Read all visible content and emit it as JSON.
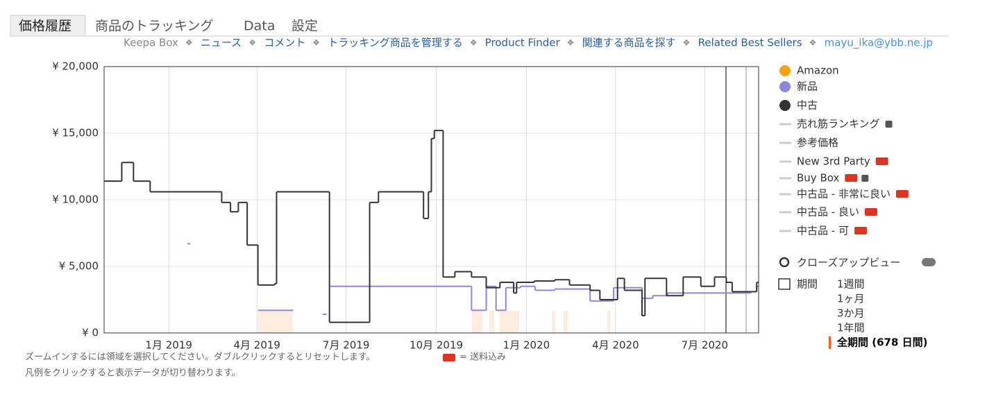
{
  "tabs": [
    "価格履歴",
    "商品のトラッキング",
    "Data",
    "設定"
  ],
  "links": [
    "Keepa Box",
    "ニュース",
    "コメント",
    "トラッキング商品を管理する",
    "Product Finder",
    "関連する商品を探す",
    "Related Best Sellers",
    "mayu_ika@ybb.ne.jp"
  ],
  "chart_data": {
    "type": "line",
    "step": true,
    "xlim": [
      0,
      668
    ],
    "xticks": [
      {
        "value": 66,
        "label": "1月 2019"
      },
      {
        "value": 156,
        "label": "4月 2019"
      },
      {
        "value": 247,
        "label": "7月 2019"
      },
      {
        "value": 339,
        "label": "10月 2019"
      },
      {
        "value": 431,
        "label": "1月 2020"
      },
      {
        "value": 522,
        "label": "4月 2020"
      },
      {
        "value": 613,
        "label": "7月 2020"
      }
    ],
    "ylim": [
      0,
      20000
    ],
    "yticks": [
      {
        "value": 0,
        "label": "¥ 0"
      },
      {
        "value": 5000,
        "label": "¥ 5,000"
      },
      {
        "value": 10000,
        "label": "¥ 10,000"
      },
      {
        "value": 15000,
        "label": "¥ 15,000"
      },
      {
        "value": 20000,
        "label": "¥ 20,000"
      }
    ],
    "grid": true,
    "series": [
      {
        "name": "新品",
        "color": "#8888dd",
        "x": [
          85,
          88,
          157,
          193,
          223,
          227,
          231,
          375,
          390,
          400,
          410,
          425,
          440,
          460,
          496,
          520,
          549,
          560,
          575,
          641,
          660,
          666
        ],
        "values": [
          6700,
          null,
          1700,
          null,
          1400,
          null,
          3500,
          1700,
          3500,
          1700,
          3400,
          3500,
          3200,
          3300,
          2400,
          3400,
          2600,
          2800,
          3000,
          3000,
          3100,
          3500
        ]
      },
      {
        "name": "中古",
        "color": "#333333",
        "x": [
          0,
          18,
          30,
          47,
          120,
          129,
          137,
          146,
          157,
          174,
          176,
          230,
          271,
          280,
          326,
          331,
          334,
          337,
          346,
          358,
          375,
          390,
          404,
          418,
          421,
          439,
          460,
          475,
          496,
          506,
          524,
          531,
          549,
          552,
          574,
          591,
          609,
          623,
          635,
          641,
          666
        ],
        "values": [
          11400,
          12800,
          11400,
          10600,
          9800,
          9100,
          9800,
          6600,
          3600,
          3700,
          10600,
          800,
          9800,
          10600,
          8600,
          10600,
          14600,
          15200,
          4200,
          4600,
          4200,
          3400,
          3800,
          3000,
          3800,
          3900,
          4000,
          3600,
          3200,
          2500,
          4100,
          3200,
          1300,
          4100,
          2800,
          4200,
          3500,
          4200,
          3800,
          3100,
          3800
        ]
      }
    ]
  },
  "legend_extra": [
    {
      "name": "Amazon",
      "color": "#f5a30a"
    },
    {
      "name": "売れ筋ランキング"
    },
    {
      "name": "参考価格"
    },
    {
      "name": "New 3rd Party"
    },
    {
      "name": "Buy Box"
    },
    {
      "name": "中古品 - 非常に良い"
    },
    {
      "name": "中古品 - 良い"
    },
    {
      "name": "中古品 - 可"
    }
  ],
  "closeup": "クローズアップビュー",
  "period": {
    "label": "期間",
    "options": [
      "1週間",
      "1ヶ月",
      "3か月",
      "1年間",
      "全期間 (678 日間)"
    ]
  },
  "footer": {
    "zoom": "ズームインするには領域を選択してください。ダブルクリックするとリセットします。",
    "shipping": "= 送料込み",
    "legend_hint": "凡例をクリックすると表示データが切り替わります。"
  }
}
